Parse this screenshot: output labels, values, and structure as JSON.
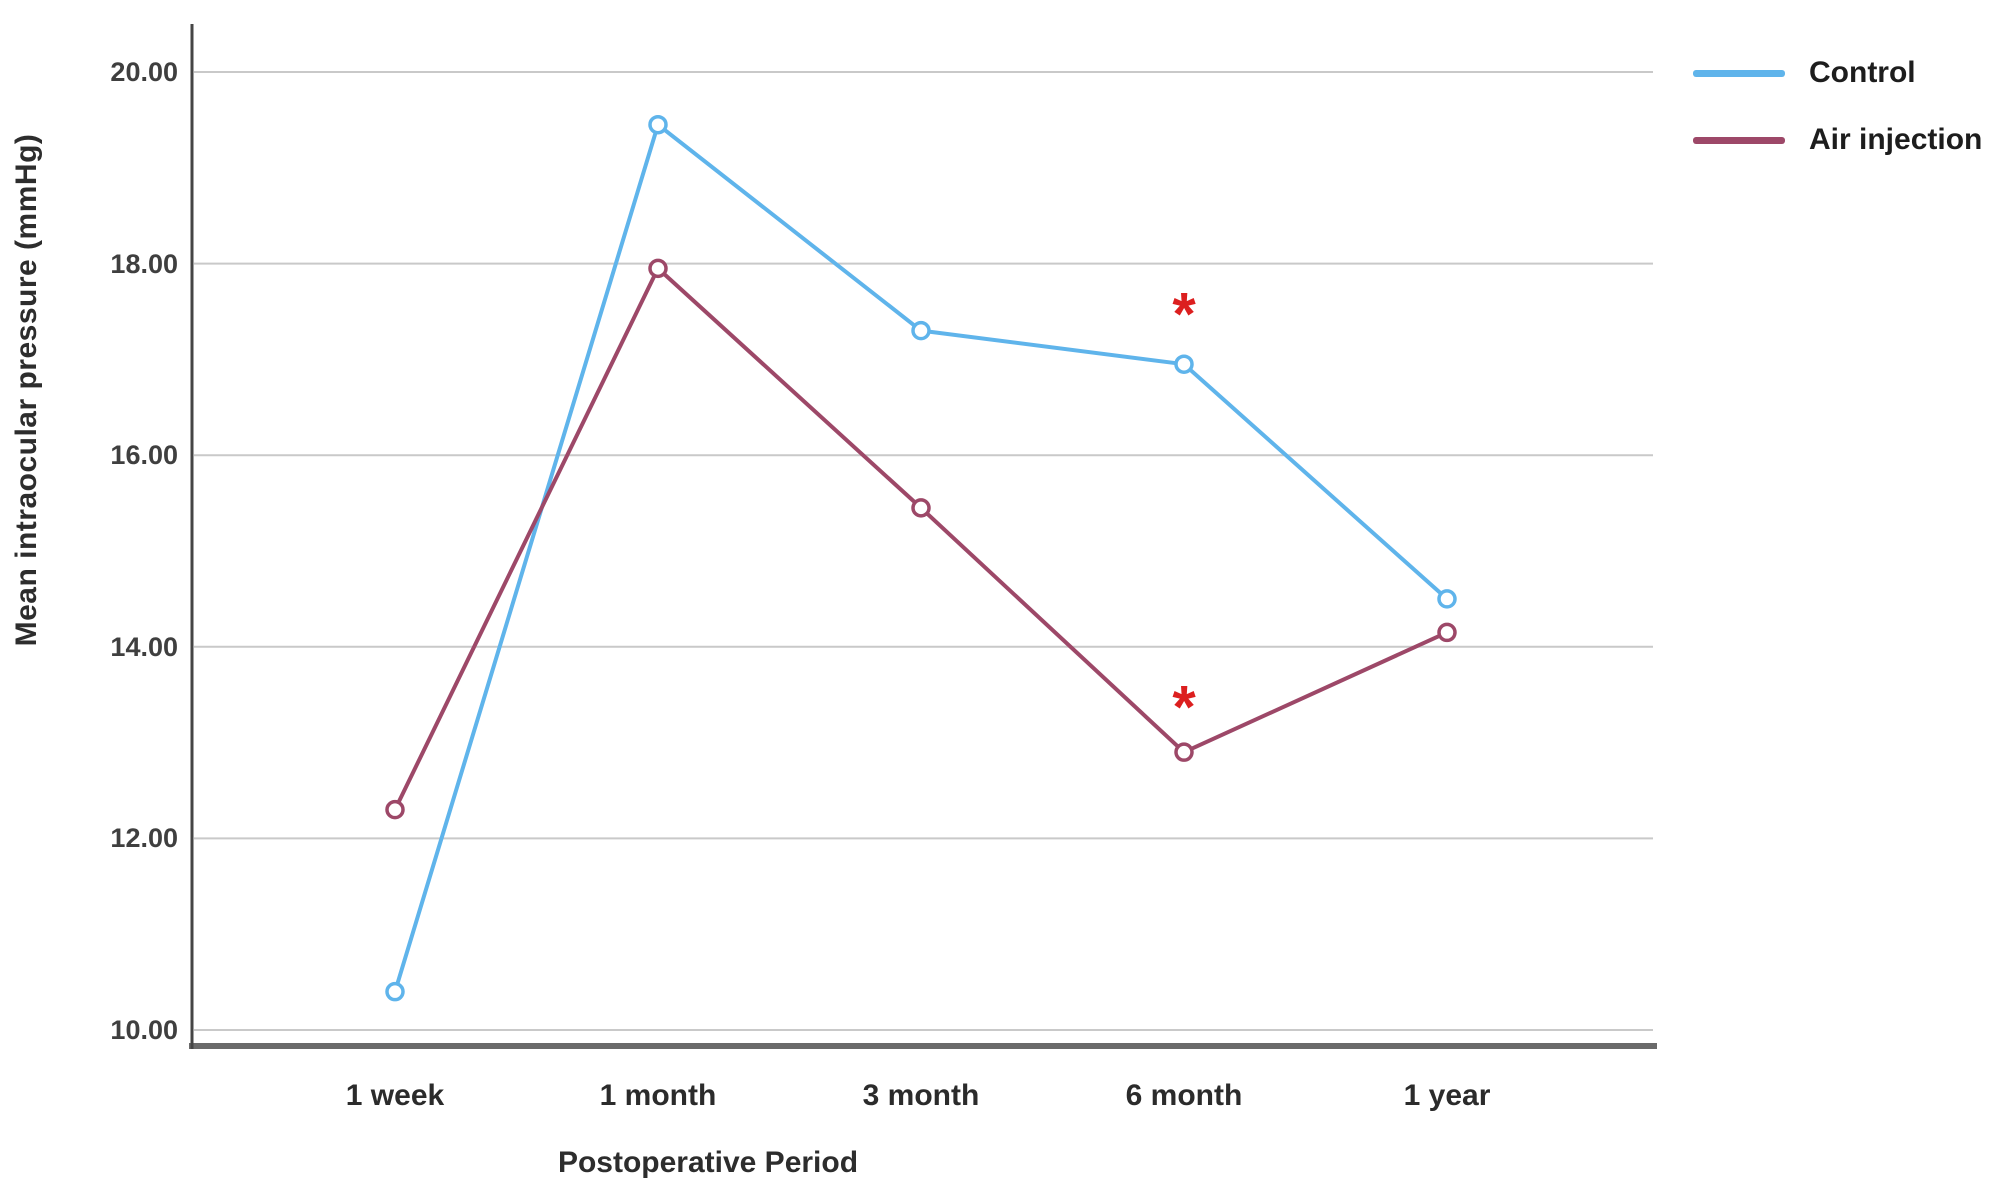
{
  "chart_data": {
    "type": "line",
    "categories": [
      "1 week",
      "1 month",
      "3 month",
      "6 month",
      "1 year"
    ],
    "series": [
      {
        "name": "Control",
        "color": "#5FB4EB",
        "values": [
          10.4,
          19.45,
          17.3,
          16.95,
          14.5
        ]
      },
      {
        "name": "Air injection",
        "color": "#9D4868",
        "values": [
          12.3,
          17.95,
          15.45,
          12.9,
          14.15
        ]
      }
    ],
    "annotations": [
      {
        "symbol": "*",
        "category": "6 month",
        "y": 17.55,
        "color": "#DC1F1F"
      },
      {
        "symbol": "*",
        "category": "6 month",
        "y": 13.45,
        "color": "#DC1F1F"
      }
    ],
    "xlabel": "Postoperative Period",
    "ylabel": "Mean intraocular pressure (mmHg)",
    "ylim": [
      10,
      20
    ],
    "yticks": [
      10,
      12,
      14,
      16,
      18,
      20
    ],
    "ytick_labels": [
      "10.00",
      "12.00",
      "14.00",
      "16.00",
      "18.00",
      "20.00"
    ],
    "grid": true,
    "grid_color": "#C9C9C9",
    "axis_colors": {
      "left": "#454545",
      "bottom": "#6A6A6A"
    },
    "marker_fill": "#FFFFFF",
    "legend_position": "top-right"
  }
}
